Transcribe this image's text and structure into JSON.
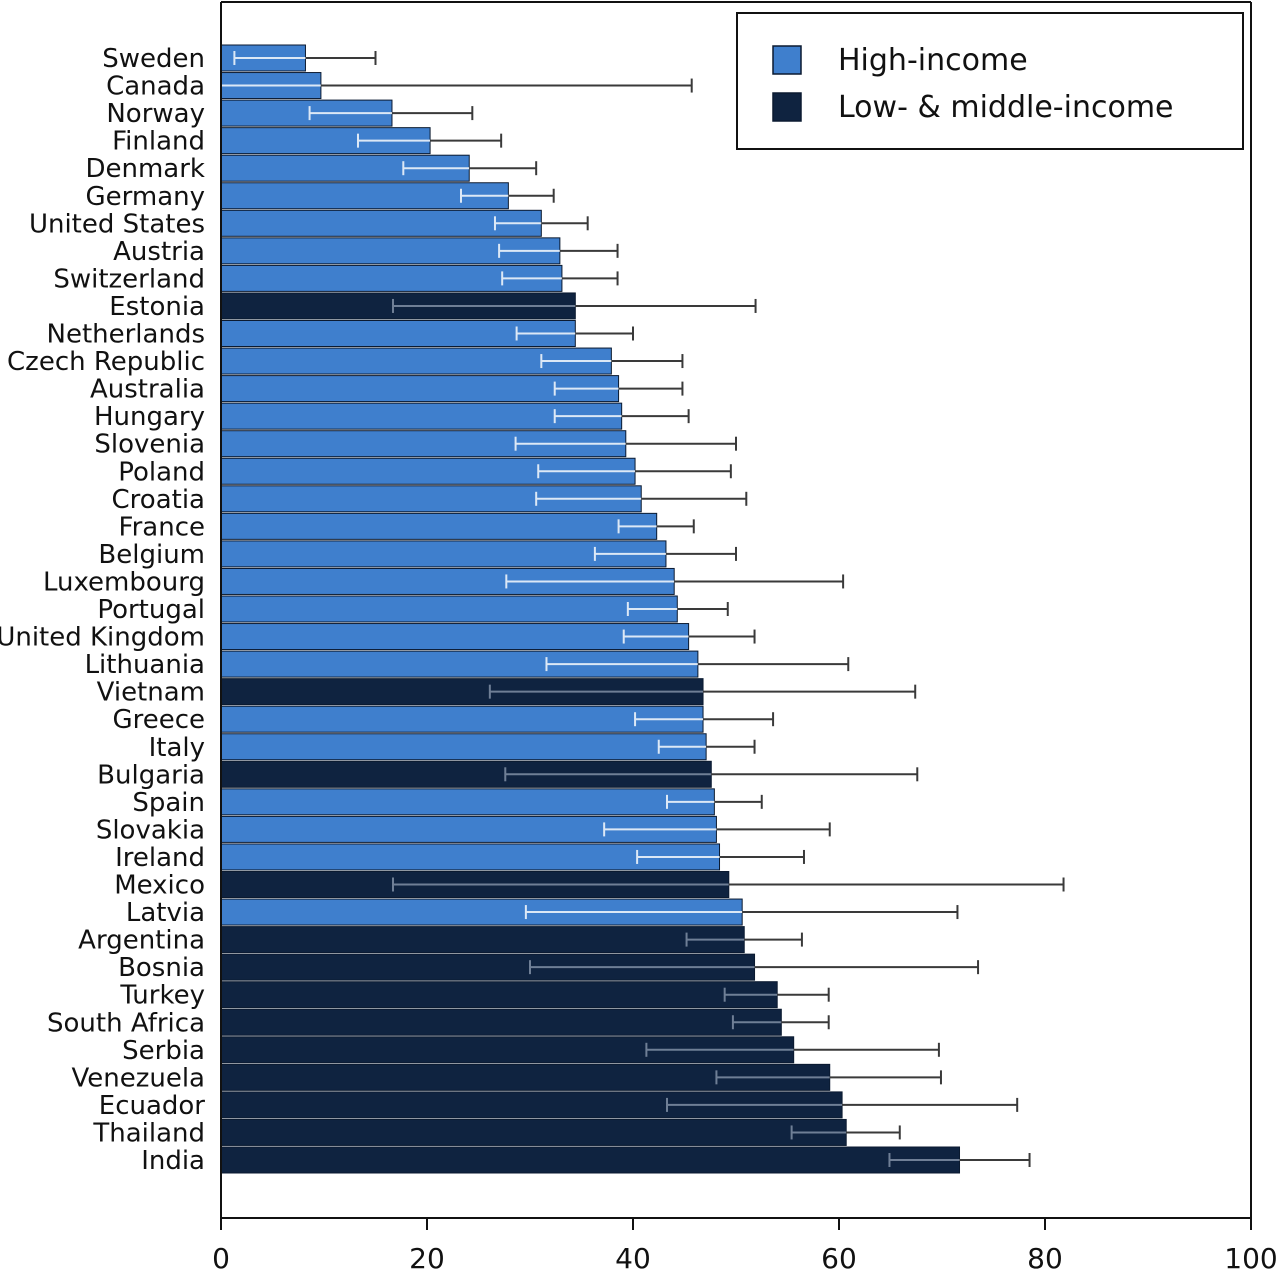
{
  "chart_data": {
    "type": "bar",
    "orientation": "horizontal",
    "title": "",
    "xlabel": "",
    "ylabel": "",
    "xlim": [
      0,
      100
    ],
    "x_ticks": [
      0,
      20,
      40,
      60,
      80,
      100
    ],
    "x_tick_labels": [
      "0",
      "20",
      "40",
      "60",
      "80",
      "100"
    ],
    "grid": false,
    "legend_position": "top-right",
    "colors": {
      "high_income": "#3f7fcd",
      "low_middle_income": "#0f2340",
      "error_bar_on_high": "#dce8f6",
      "error_bar_on_low": "#3a3a3a"
    },
    "legend": [
      {
        "key": "high",
        "label": "High-income",
        "color": "#3f7fcd"
      },
      {
        "key": "low",
        "label": "Low- & middle-income",
        "color": "#0f2340"
      }
    ],
    "bars": [
      {
        "country": "Sweden",
        "group": "high",
        "value": 8.2,
        "ci_low": 1.3,
        "ci_high": 15.0
      },
      {
        "country": "Canada",
        "group": "high",
        "value": 9.7,
        "ci_low": 0.0,
        "ci_high": 45.7
      },
      {
        "country": "Norway",
        "group": "high",
        "value": 16.6,
        "ci_low": 8.6,
        "ci_high": 24.4
      },
      {
        "country": "Finland",
        "group": "high",
        "value": 20.3,
        "ci_low": 13.3,
        "ci_high": 27.2
      },
      {
        "country": "Denmark",
        "group": "high",
        "value": 24.1,
        "ci_low": 17.7,
        "ci_high": 30.6
      },
      {
        "country": "Germany",
        "group": "high",
        "value": 27.9,
        "ci_low": 23.3,
        "ci_high": 32.3
      },
      {
        "country": "United States",
        "group": "high",
        "value": 31.1,
        "ci_low": 26.6,
        "ci_high": 35.6
      },
      {
        "country": "Austria",
        "group": "high",
        "value": 32.9,
        "ci_low": 27.0,
        "ci_high": 38.5
      },
      {
        "country": "Switzerland",
        "group": "high",
        "value": 33.1,
        "ci_low": 27.3,
        "ci_high": 38.5
      },
      {
        "country": "Estonia",
        "group": "low",
        "value": 34.4,
        "ci_low": 16.7,
        "ci_high": 51.9
      },
      {
        "country": "Netherlands",
        "group": "high",
        "value": 34.4,
        "ci_low": 28.7,
        "ci_high": 40.0
      },
      {
        "country": "Czech Republic",
        "group": "high",
        "value": 37.9,
        "ci_low": 31.1,
        "ci_high": 44.8
      },
      {
        "country": "Australia",
        "group": "high",
        "value": 38.6,
        "ci_low": 32.4,
        "ci_high": 44.8
      },
      {
        "country": "Hungary",
        "group": "high",
        "value": 38.9,
        "ci_low": 32.4,
        "ci_high": 45.4
      },
      {
        "country": "Slovenia",
        "group": "high",
        "value": 39.3,
        "ci_low": 28.6,
        "ci_high": 50.0
      },
      {
        "country": "Poland",
        "group": "high",
        "value": 40.2,
        "ci_low": 30.8,
        "ci_high": 49.5
      },
      {
        "country": "Croatia",
        "group": "high",
        "value": 40.8,
        "ci_low": 30.6,
        "ci_high": 51.0
      },
      {
        "country": "France",
        "group": "high",
        "value": 42.3,
        "ci_low": 38.6,
        "ci_high": 45.9
      },
      {
        "country": "Belgium",
        "group": "high",
        "value": 43.2,
        "ci_low": 36.3,
        "ci_high": 50.0
      },
      {
        "country": "Luxembourg",
        "group": "high",
        "value": 44.0,
        "ci_low": 27.7,
        "ci_high": 60.4
      },
      {
        "country": "Portugal",
        "group": "high",
        "value": 44.3,
        "ci_low": 39.5,
        "ci_high": 49.2
      },
      {
        "country": "United Kingdom",
        "group": "high",
        "value": 45.4,
        "ci_low": 39.1,
        "ci_high": 51.8
      },
      {
        "country": "Lithuania",
        "group": "high",
        "value": 46.3,
        "ci_low": 31.6,
        "ci_high": 60.9
      },
      {
        "country": "Vietnam",
        "group": "low",
        "value": 46.8,
        "ci_low": 26.1,
        "ci_high": 67.4
      },
      {
        "country": "Greece",
        "group": "high",
        "value": 46.8,
        "ci_low": 40.2,
        "ci_high": 53.6
      },
      {
        "country": "Italy",
        "group": "high",
        "value": 47.1,
        "ci_low": 42.5,
        "ci_high": 51.8
      },
      {
        "country": "Bulgaria",
        "group": "low",
        "value": 47.6,
        "ci_low": 27.6,
        "ci_high": 67.6
      },
      {
        "country": "Spain",
        "group": "high",
        "value": 47.9,
        "ci_low": 43.3,
        "ci_high": 52.5
      },
      {
        "country": "Slovakia",
        "group": "high",
        "value": 48.1,
        "ci_low": 37.2,
        "ci_high": 59.1
      },
      {
        "country": "Ireland",
        "group": "high",
        "value": 48.4,
        "ci_low": 40.4,
        "ci_high": 56.6
      },
      {
        "country": "Mexico",
        "group": "low",
        "value": 49.3,
        "ci_low": 16.7,
        "ci_high": 81.8
      },
      {
        "country": "Latvia",
        "group": "high",
        "value": 50.6,
        "ci_low": 29.6,
        "ci_high": 71.5
      },
      {
        "country": "Argentina",
        "group": "low",
        "value": 50.8,
        "ci_low": 45.2,
        "ci_high": 56.4
      },
      {
        "country": "Bosnia",
        "group": "low",
        "value": 51.8,
        "ci_low": 30.0,
        "ci_high": 73.5
      },
      {
        "country": "Turkey",
        "group": "low",
        "value": 54.0,
        "ci_low": 48.9,
        "ci_high": 59.0
      },
      {
        "country": "South Africa",
        "group": "low",
        "value": 54.4,
        "ci_low": 49.7,
        "ci_high": 59.0
      },
      {
        "country": "Serbia",
        "group": "low",
        "value": 55.6,
        "ci_low": 41.3,
        "ci_high": 69.7
      },
      {
        "country": "Venezuela",
        "group": "low",
        "value": 59.1,
        "ci_low": 48.1,
        "ci_high": 69.9
      },
      {
        "country": "Ecuador",
        "group": "low",
        "value": 60.3,
        "ci_low": 43.3,
        "ci_high": 77.3
      },
      {
        "country": "Thailand",
        "group": "low",
        "value": 60.7,
        "ci_low": 55.4,
        "ci_high": 65.9
      },
      {
        "country": "India",
        "group": "low",
        "value": 71.7,
        "ci_low": 64.9,
        "ci_high": 78.5
      }
    ]
  }
}
